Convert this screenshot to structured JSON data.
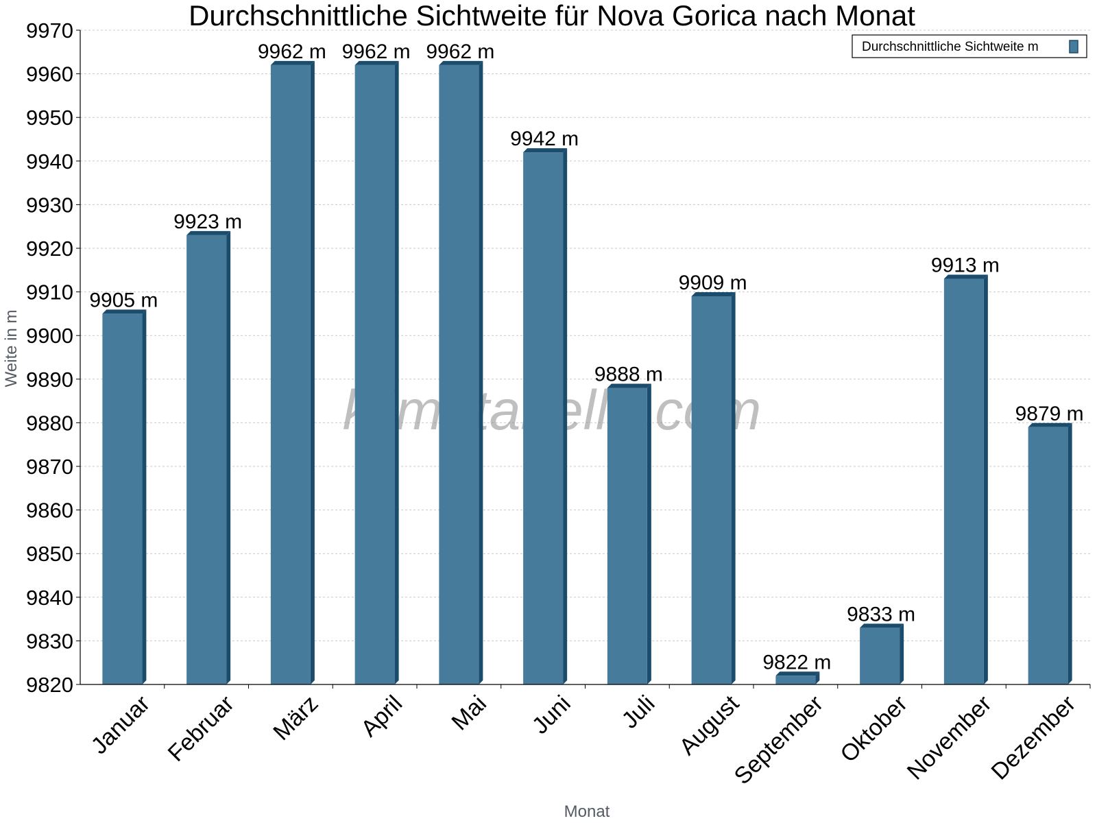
{
  "chart_data": {
    "type": "bar",
    "title": "Durchschnittliche Sichtweite für Nova Gorica nach Monat",
    "xlabel": "Monat",
    "ylabel": "Weite in m",
    "categories": [
      "Januar",
      "Februar",
      "März",
      "April",
      "Mai",
      "Juni",
      "Juli",
      "August",
      "September",
      "Oktober",
      "November",
      "Dezember"
    ],
    "series": [
      {
        "name": "Durchschnittliche Sichtweite m",
        "values": [
          9905,
          9923,
          9962,
          9962,
          9962,
          9942,
          9888,
          9909,
          9822,
          9833,
          9913,
          9879
        ],
        "labels": [
          "9905 m",
          "9923 m",
          "9962 m",
          "9962 m",
          "9962 m",
          "9942 m",
          "9888 m",
          "9909 m",
          "9822 m",
          "9833 m",
          "9913 m",
          "9879 m"
        ]
      }
    ],
    "ylim": [
      9820,
      9970
    ],
    "yticks": [
      9820,
      9830,
      9840,
      9850,
      9860,
      9870,
      9880,
      9890,
      9900,
      9910,
      9920,
      9930,
      9940,
      9950,
      9960,
      9970
    ],
    "grid": true,
    "legend": {
      "position": "top-right"
    },
    "colors": {
      "bar": "#467b9c",
      "bar_edge": "#1b4c6c"
    },
    "watermark": "klimatabelle.com"
  }
}
